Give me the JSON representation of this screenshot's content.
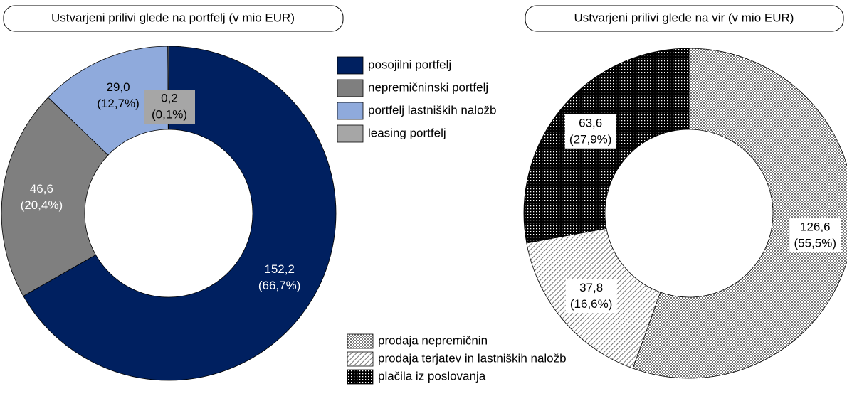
{
  "chart_data": [
    {
      "type": "donut",
      "title": "Ustvarjeni prilivi glede na portfelj (v mio EUR)",
      "categories": [
        "posojilni portfelj",
        "nepremičninski portfelj",
        "portfelj lastniških naložb",
        "leasing portfelj"
      ],
      "values": [
        152.2,
        46.6,
        29.0,
        0.2
      ],
      "value_labels": [
        "152,2",
        "46,6",
        "29,0",
        "0,2"
      ],
      "share_labels": [
        "(66,7%)",
        "(20,4%)",
        "(12,7%)",
        "(0,1%)"
      ],
      "colors": [
        "#002060",
        "#7f7f7f",
        "#8faadc",
        "#a6a6a6"
      ]
    },
    {
      "type": "donut",
      "title": "Ustvarjeni prilivi glede na vir (v mio EUR)",
      "categories": [
        "prodaja nepremičnin",
        "prodaja terjatev in lastniških naložb",
        "plačila iz poslovanja"
      ],
      "values": [
        126.6,
        37.8,
        63.6
      ],
      "value_labels": [
        "126,6",
        "37,8",
        "63,6"
      ],
      "share_labels": [
        "(55,5%)",
        "(16,6%)",
        "(27,9%)"
      ],
      "patterns": [
        "checker",
        "hatch",
        "dots"
      ]
    }
  ]
}
